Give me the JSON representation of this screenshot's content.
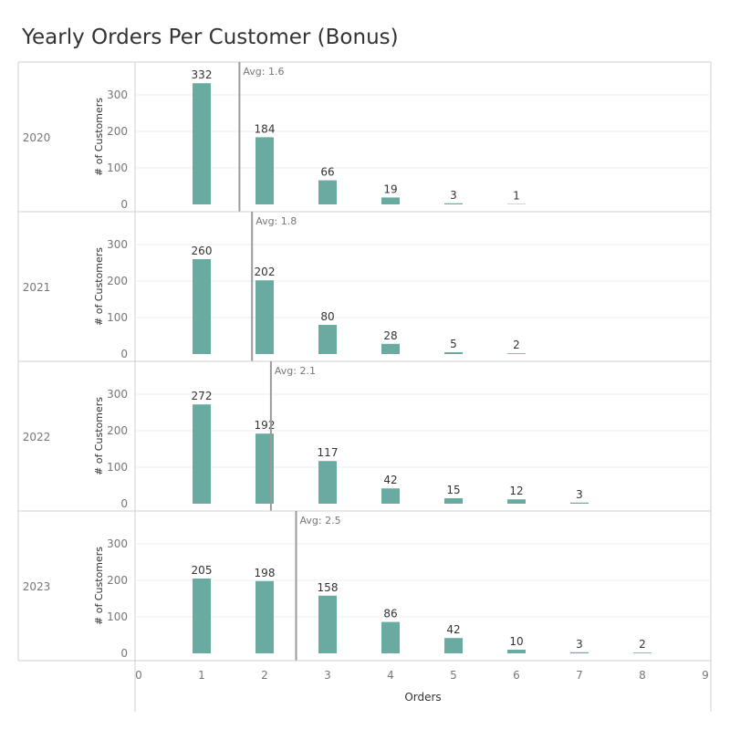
{
  "chart_data": {
    "type": "bar",
    "title": "Yearly Orders Per Customer (Bonus)",
    "xlabel": "Orders",
    "ylabel": "# of Customers",
    "xlim": [
      0,
      9
    ],
    "ylim": [
      0,
      390
    ],
    "x_ticks": [
      0,
      1,
      2,
      3,
      4,
      5,
      6,
      7,
      8,
      9
    ],
    "y_ticks": [
      0,
      100,
      200,
      300
    ],
    "grid": true,
    "panels": [
      {
        "year": "2020",
        "avg": 1.6,
        "avg_label": "Avg: 1.6",
        "x": [
          1,
          2,
          3,
          4,
          5,
          6
        ],
        "values": [
          332,
          184,
          66,
          19,
          3,
          1
        ]
      },
      {
        "year": "2021",
        "avg": 1.8,
        "avg_label": "Avg: 1.8",
        "x": [
          1,
          2,
          3,
          4,
          5,
          6
        ],
        "values": [
          260,
          202,
          80,
          28,
          5,
          2
        ]
      },
      {
        "year": "2022",
        "avg": 2.1,
        "avg_label": "Avg: 2.1",
        "x": [
          1,
          2,
          3,
          4,
          5,
          6,
          7
        ],
        "values": [
          272,
          192,
          117,
          42,
          15,
          12,
          3
        ]
      },
      {
        "year": "2023",
        "avg": 2.5,
        "avg_label": "Avg: 2.5",
        "x": [
          1,
          2,
          3,
          4,
          5,
          6,
          7,
          8
        ],
        "values": [
          205,
          198,
          158,
          86,
          42,
          10,
          3,
          2
        ]
      }
    ]
  },
  "colors": {
    "bar": "#6aaba1",
    "avg_line": "#9b9b9b",
    "grid": "#eeeeee",
    "border": "#d0d0d0",
    "text": "#333333",
    "axis_text": "#777777"
  }
}
